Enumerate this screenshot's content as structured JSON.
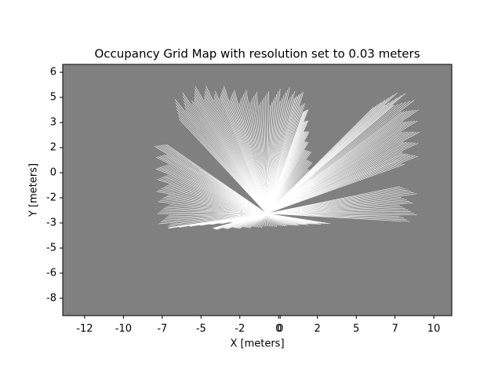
{
  "chart_data": {
    "type": "image",
    "title": "Occupancy Grid Map with resolution set to 0.03 meters",
    "x_label": "X [meters]",
    "y_label": "Y [meters]",
    "xlim": [
      -13.8,
      11.07
    ],
    "ylim": [
      -8.82,
      6.69
    ],
    "xticks": [
      {
        "value": -12.4,
        "label": "-12"
      },
      {
        "value": -9.92,
        "label": "-10"
      },
      {
        "value": -7.44,
        "label": "-7"
      },
      {
        "value": -4.96,
        "label": "-5"
      },
      {
        "value": -2.48,
        "label": "-2"
      },
      {
        "value": 0,
        "label": "0"
      },
      {
        "value": 0.1,
        "label": "0"
      },
      {
        "value": 2.48,
        "label": "2"
      },
      {
        "value": 4.96,
        "label": "5"
      },
      {
        "value": 7.44,
        "label": "7"
      },
      {
        "value": 9.92,
        "label": "10"
      }
    ],
    "yticks": [
      {
        "value": 6.2,
        "label": "6"
      },
      {
        "value": 4.65,
        "label": "5"
      },
      {
        "value": 3.1,
        "label": "3"
      },
      {
        "value": 1.55,
        "label": "2"
      },
      {
        "value": 0,
        "label": "0"
      },
      {
        "value": -1.55,
        "label": "-2"
      },
      {
        "value": -3.1,
        "label": "-3"
      },
      {
        "value": -4.65,
        "label": "-5"
      },
      {
        "value": -6.2,
        "label": "-6"
      },
      {
        "value": -7.75,
        "label": "-8"
      }
    ],
    "background": "#808080"
  }
}
